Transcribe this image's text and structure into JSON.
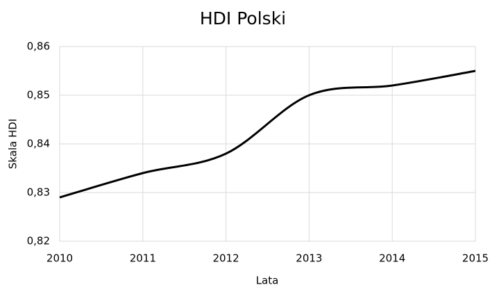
{
  "chart_data": {
    "type": "line",
    "title": "HDI Polski",
    "x_label": "Lata",
    "y_label": "Skala HDI",
    "x": [
      2010,
      2011,
      2012,
      2013,
      2014,
      2015
    ],
    "series": [
      {
        "name": "HDI",
        "color": "#000000",
        "values": [
          0.829,
          0.834,
          0.838,
          0.85,
          0.852,
          0.855
        ]
      }
    ],
    "xlim": [
      2010,
      2015
    ],
    "xticks": [
      2010,
      2011,
      2012,
      2013,
      2014,
      2015
    ],
    "ylim": [
      0.82,
      0.86
    ],
    "yticks": [
      {
        "value": 0.82,
        "label": "0,82"
      },
      {
        "value": 0.83,
        "label": "0,83"
      },
      {
        "value": 0.84,
        "label": "0,84"
      },
      {
        "value": 0.85,
        "label": "0,85"
      },
      {
        "value": 0.86,
        "label": "0,86"
      }
    ],
    "grid": true,
    "smooth": true
  }
}
